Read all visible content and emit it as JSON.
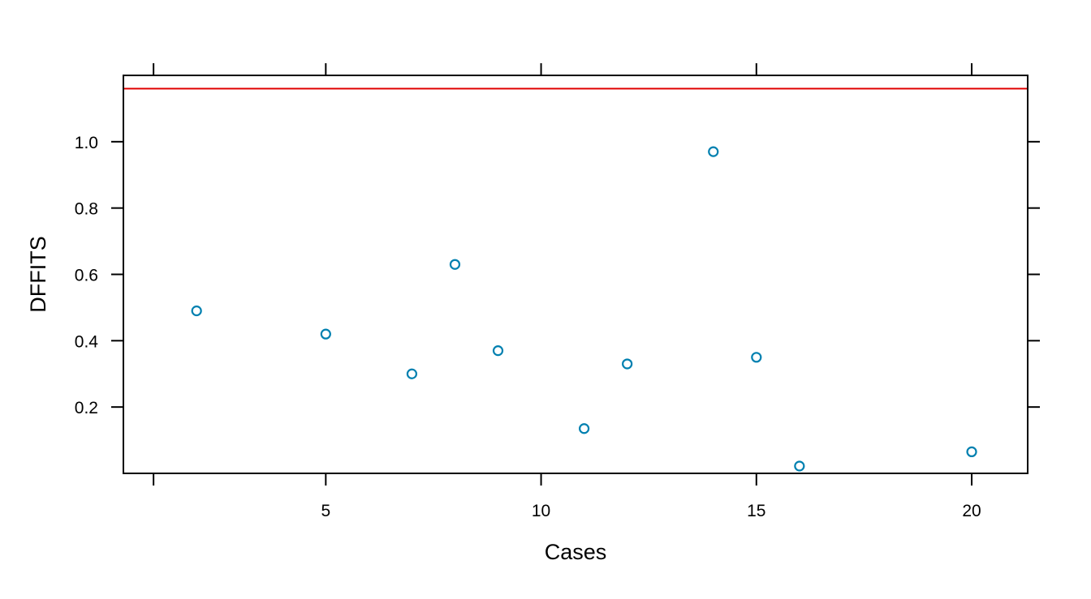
{
  "chart_data": {
    "type": "scatter",
    "xlabel": "Cases",
    "ylabel": "DFFITS",
    "xlim": [
      0.3,
      21.3
    ],
    "ylim": [
      0.0,
      1.2
    ],
    "x_ticks": [
      1,
      5,
      10,
      15,
      20
    ],
    "x_tick_labels": [
      "",
      "5",
      "10",
      "15",
      "20"
    ],
    "y_ticks": [
      0.2,
      0.4,
      0.6,
      0.8,
      1.0
    ],
    "y_tick_labels": [
      "0.2",
      "0.4",
      "0.6",
      "0.8",
      "1.0"
    ],
    "series": [
      {
        "x": [
          2,
          5,
          7,
          8,
          9,
          11,
          12,
          14,
          15,
          16,
          20
        ],
        "y": [
          0.49,
          0.42,
          0.3,
          0.63,
          0.37,
          0.135,
          0.33,
          0.97,
          0.35,
          0.022,
          0.065
        ],
        "color": "#0080b0",
        "marker": "open-circle"
      }
    ],
    "reference_lines": [
      {
        "orientation": "horizontal",
        "y": 1.16,
        "color": "#e00000"
      }
    ],
    "grid": false,
    "legend": "none"
  }
}
